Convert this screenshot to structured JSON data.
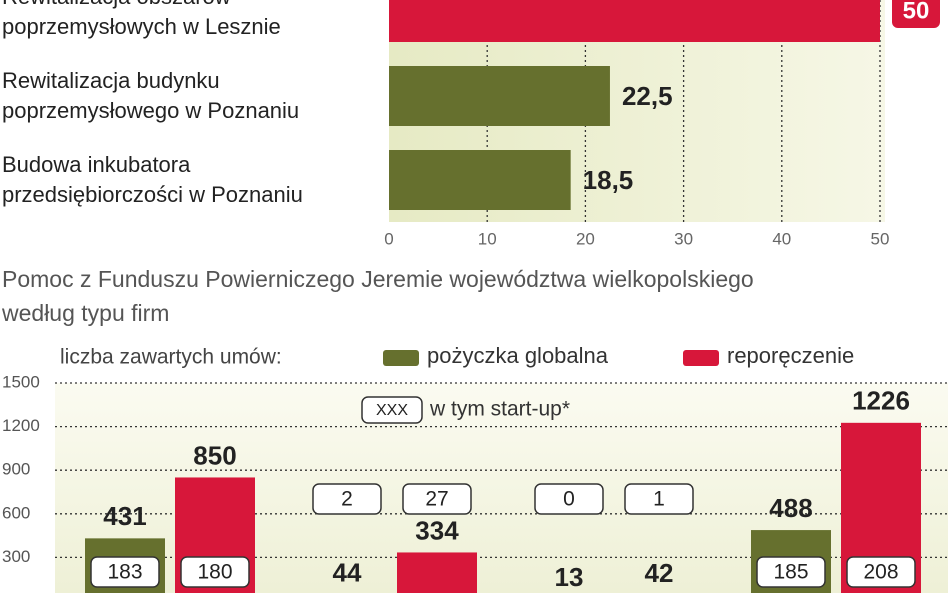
{
  "chart_data": [
    {
      "type": "hbar",
      "categories": [
        "Rewitalizacja obszarów\npoprzemysłowych w Lesznie",
        "Rewitalizacja budynku\npoprzemysłowego w Poznaniu",
        "Budowa inkubatora\nprzedsiębiorczości w Poznaniu"
      ],
      "values": [
        50,
        22.5,
        18.5
      ],
      "value_labels": [
        "50",
        "22,5",
        "18,5"
      ],
      "colors": [
        "#d7173a",
        "#66702e",
        "#66702e"
      ],
      "xlim": [
        0,
        50
      ],
      "xticks": [
        0,
        10,
        20,
        30,
        40,
        50
      ],
      "grid": true
    },
    {
      "type": "grouped-bar",
      "title": "Pomoc z Funduszu Powierniczego Jeremie województwa wielkopolskiego\nwedług typu firm",
      "y_label": "liczba zawartych umów:",
      "note_box": "XXX",
      "note": "w tym start-up*",
      "categories": [
        null,
        null,
        null,
        null
      ],
      "series": [
        {
          "name": "pożyczka globalna",
          "color": "#66702e",
          "values": [
            431,
            44,
            13,
            488
          ],
          "startup": [
            183,
            2,
            0,
            185
          ]
        },
        {
          "name": "reporęczenie",
          "color": "#d7173a",
          "values": [
            850,
            334,
            42,
            1226
          ],
          "startup": [
            180,
            27,
            1,
            208
          ]
        }
      ],
      "ylim": [
        0,
        1500
      ],
      "yticks": [
        300,
        600,
        900,
        1200,
        1500
      ],
      "grid": true
    }
  ]
}
